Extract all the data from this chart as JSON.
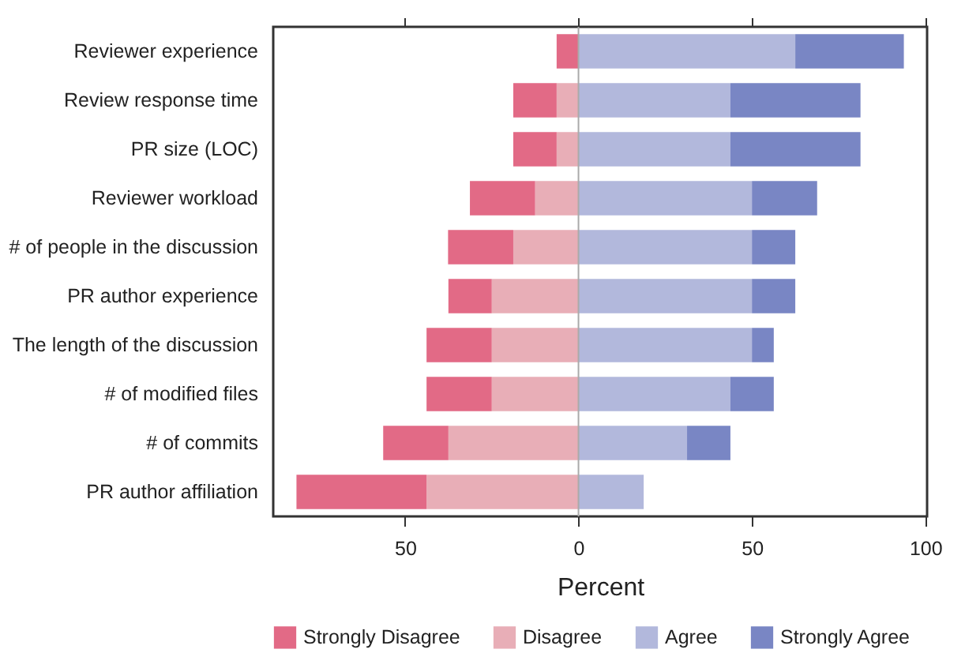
{
  "chart_data": {
    "type": "bar",
    "orientation": "horizontal",
    "stacked": true,
    "xlabel": "Percent",
    "categories": [
      "Reviewer experience",
      "Review response time",
      "PR size (LOC)",
      "Reviewer workload",
      "# of people in the discussion",
      "PR author experience",
      "The length of the discussion",
      "# of modified files",
      "# of commits",
      "PR author affiliation"
    ],
    "series": [
      {
        "name": "Disagree",
        "color": "#e8aeb7",
        "values": [
          0,
          -6.3,
          -6.3,
          -12.5,
          -18.8,
          -25,
          -25,
          -25,
          -37.5,
          -43.8
        ]
      },
      {
        "name": "Strongly Disagree",
        "color": "#e26a86",
        "values": [
          -6.3,
          -12.5,
          -12.5,
          -18.8,
          -18.8,
          -12.5,
          -18.8,
          -18.8,
          -18.8,
          -37.5
        ]
      },
      {
        "name": "Agree",
        "color": "#b2b8dc",
        "values": [
          62.5,
          43.8,
          43.8,
          50,
          50,
          50,
          50,
          43.8,
          31.3,
          18.8
        ]
      },
      {
        "name": "Strongly Agree",
        "color": "#7986c4",
        "values": [
          31.3,
          37.5,
          37.5,
          18.8,
          12.5,
          12.5,
          6.3,
          12.5,
          12.5,
          0
        ]
      }
    ],
    "xlim": [
      -88,
      100.5
    ],
    "xticks": [
      {
        "value": -50,
        "label": "50"
      },
      0,
      50,
      100
    ],
    "ref_lines": [
      {
        "axis": "x",
        "value": 0,
        "color": "#aaaaaa"
      }
    ],
    "legend": "bottom",
    "grid": false
  }
}
